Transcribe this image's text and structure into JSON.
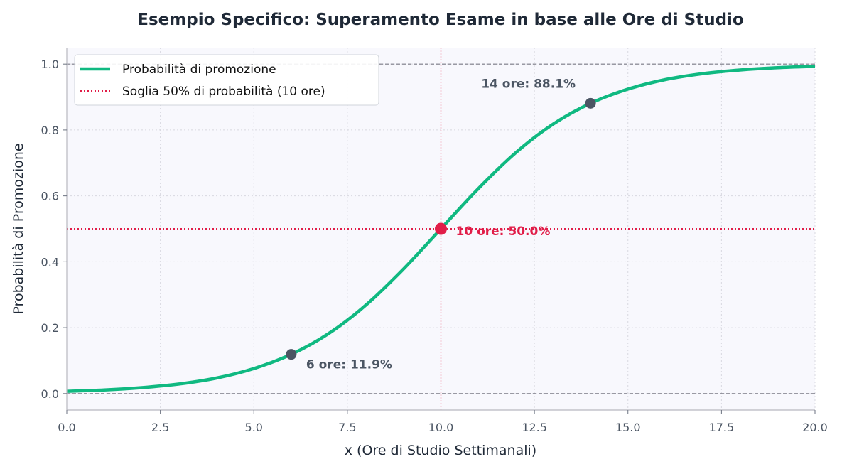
{
  "chart_data": {
    "type": "line",
    "title": "Esempio Specifico: Superamento Esame in base alle Ore di Studio",
    "xlabel": "x (Ore di Studio Settimanali)",
    "ylabel": "Probabilità di Promozione",
    "xlim": [
      0,
      20
    ],
    "ylim": [
      -0.05,
      1.05
    ],
    "x_ticks": [
      0,
      2.5,
      5,
      7.5,
      10,
      12.5,
      15,
      17.5,
      20
    ],
    "x_tick_labels": [
      "0.0",
      "2.5",
      "5.0",
      "7.5",
      "10.0",
      "12.5",
      "15.0",
      "17.5",
      "20.0"
    ],
    "y_ticks": [
      0,
      0.2,
      0.4,
      0.6,
      0.8,
      1.0
    ],
    "y_tick_labels": [
      "0.0",
      "0.2",
      "0.4",
      "0.6",
      "0.8",
      "1.0"
    ],
    "grid": true,
    "legend_position": "top-left",
    "series": [
      {
        "name": "Probabilità di promozione",
        "color": "#10b981",
        "x": [
          0,
          1,
          2,
          3,
          4,
          5,
          6,
          7,
          8,
          9,
          10,
          11,
          12,
          13,
          14,
          15,
          16,
          17,
          18,
          19,
          20
        ],
        "y": [
          0.007,
          0.011,
          0.018,
          0.029,
          0.047,
          0.076,
          0.119,
          0.182,
          0.269,
          0.378,
          0.5,
          0.622,
          0.731,
          0.818,
          0.881,
          0.924,
          0.953,
          0.971,
          0.982,
          0.989,
          0.993
        ]
      }
    ],
    "reference_lines": {
      "threshold_label": "Soglia 50% di probabilità (10 ore)",
      "threshold_color": "#e11d48",
      "vertical_x": 10,
      "horizontal_y": 0.5,
      "bounds_y": [
        0,
        1
      ]
    },
    "points": [
      {
        "x": 6,
        "y": 0.119,
        "label": "6 ore: 11.9%",
        "color": "#4b5563",
        "label_pos": "below-right"
      },
      {
        "x": 10,
        "y": 0.5,
        "label": "10 ore: 50.0%",
        "color": "#e11d48",
        "label_pos": "right"
      },
      {
        "x": 14,
        "y": 0.881,
        "label": "14 ore: 88.1%",
        "color": "#4b5563",
        "label_pos": "above-left"
      }
    ]
  }
}
